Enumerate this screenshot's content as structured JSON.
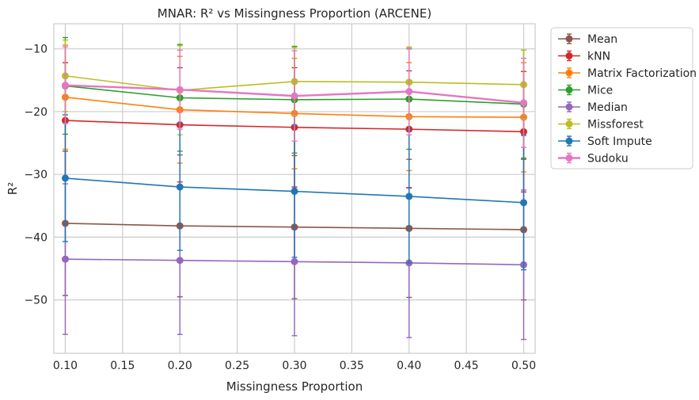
{
  "chart_data": {
    "type": "line",
    "title": "MNAR: R² vs Missingness Proportion (ARCENE)",
    "xlabel": "Missingness Proportion",
    "ylabel": "R²",
    "x": [
      0.1,
      0.2,
      0.3,
      0.4,
      0.5
    ],
    "xlim": [
      0.09,
      0.51
    ],
    "ylim": [
      -58.5,
      -6
    ],
    "xticks": [
      "0.10",
      "0.15",
      "0.20",
      "0.25",
      "0.30",
      "0.35",
      "0.40",
      "0.45",
      "0.50"
    ],
    "yticks": [
      "−10",
      "−20",
      "−30",
      "−40",
      "−50"
    ],
    "grid": true,
    "legend_position": "outside-right",
    "series": [
      {
        "name": "Mean",
        "color": "#8c564b",
        "values": [
          -37.8,
          -38.2,
          -38.4,
          -38.6,
          -38.8
        ],
        "err": [
          11.5,
          11.3,
          11.4,
          11.0,
          11.2
        ]
      },
      {
        "name": "kNN",
        "color": "#d62728",
        "values": [
          -21.4,
          -22.1,
          -22.5,
          -22.8,
          -23.2
        ],
        "err": [
          9.2,
          9.1,
          9.5,
          9.3,
          9.6
        ]
      },
      {
        "name": "Matrix Factorization",
        "color": "#ff7f0e",
        "values": [
          -17.7,
          -19.7,
          -20.3,
          -20.8,
          -20.9
        ],
        "err": [
          8.3,
          8.5,
          8.8,
          8.6,
          8.7
        ]
      },
      {
        "name": "Mice",
        "color": "#2ca02c",
        "values": [
          -15.9,
          -17.8,
          -18.1,
          -18.0,
          -18.8
        ],
        "err": [
          7.7,
          8.5,
          8.5,
          8.0,
          8.6
        ]
      },
      {
        "name": "Median",
        "color": "#9467bd",
        "values": [
          -43.5,
          -43.7,
          -43.9,
          -44.1,
          -44.4
        ],
        "err": [
          12.0,
          11.8,
          11.8,
          11.9,
          11.9
        ]
      },
      {
        "name": "Missforest",
        "color": "#bcbd22",
        "values": [
          -14.3,
          -16.6,
          -15.2,
          -15.3,
          -15.7
        ],
        "err": [
          5.7,
          7.1,
          5.4,
          5.6,
          5.5
        ]
      },
      {
        "name": "Soft Impute",
        "color": "#1f77b4",
        "values": [
          -30.6,
          -32.0,
          -32.7,
          -33.5,
          -34.5
        ],
        "err": [
          10.1,
          10.1,
          10.5,
          10.6,
          10.7
        ]
      },
      {
        "name": "Sudoku",
        "color": "#e377c2",
        "values": [
          -15.8,
          -16.5,
          -17.5,
          -16.8,
          -18.6
        ],
        "err": [
          6.1,
          6.3,
          7.2,
          6.9,
          7.1
        ]
      }
    ]
  }
}
